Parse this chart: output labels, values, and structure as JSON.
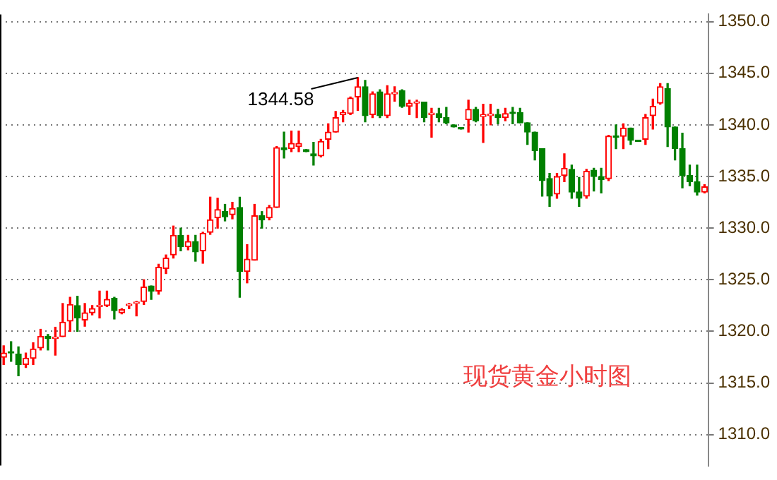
{
  "chart_data": {
    "type": "candlestick",
    "title": "现货黄金小时图",
    "categories": [
      null,
      null,
      null,
      null,
      null,
      null,
      null,
      null,
      null,
      null,
      null,
      null,
      null,
      null,
      null,
      null,
      null,
      null,
      null,
      null,
      null,
      null,
      null,
      null,
      null,
      null,
      null,
      null,
      null,
      null,
      null,
      null,
      null,
      null,
      null,
      null,
      null,
      null,
      null,
      null,
      null,
      null,
      null,
      null,
      null,
      null,
      null,
      null,
      null,
      null,
      null,
      null,
      null,
      null,
      null,
      null,
      null,
      null,
      null,
      null,
      null,
      null,
      null,
      null,
      null,
      null,
      null,
      null,
      null,
      null,
      null,
      null,
      null,
      null,
      null,
      null,
      null,
      null,
      null,
      null,
      null,
      null,
      null,
      null,
      null,
      null,
      null,
      null,
      null,
      null,
      null,
      null,
      null,
      null,
      null,
      null
    ],
    "ohlc": [
      [
        1317.5,
        1318.6,
        1316.8,
        1317.9
      ],
      [
        1318.0,
        1319.0,
        1317.1,
        1317.9
      ],
      [
        1317.8,
        1318.5,
        1315.7,
        1316.8
      ],
      [
        1316.8,
        1317.9,
        1316.5,
        1317.4
      ],
      [
        1317.4,
        1318.9,
        1316.8,
        1318.3
      ],
      [
        1318.4,
        1320.2,
        1318.2,
        1319.5
      ],
      [
        1319.5,
        1319.7,
        1318.2,
        1319.3
      ],
      [
        1319.3,
        1320.4,
        1317.7,
        1319.4
      ],
      [
        1319.5,
        1322.7,
        1319.5,
        1320.9
      ],
      [
        1321.0,
        1323.3,
        1320.0,
        1322.6
      ],
      [
        1322.5,
        1323.4,
        1320.0,
        1321.3
      ],
      [
        1321.1,
        1322.7,
        1320.5,
        1321.8
      ],
      [
        1321.8,
        1322.5,
        1321.6,
        1322.2
      ],
      [
        1322.4,
        1323.9,
        1321.3,
        1322.5
      ],
      [
        1322.5,
        1323.9,
        1322.4,
        1323.1
      ],
      [
        1323.2,
        1323.3,
        1321.2,
        1322.0
      ],
      [
        1321.8,
        1322.2,
        1321.7,
        1322.1
      ],
      [
        1322.5,
        1322.7,
        1322.2,
        1322.6
      ],
      [
        1322.7,
        1322.9,
        1321.5,
        1322.8
      ],
      [
        1322.9,
        1325.0,
        1322.6,
        1324.3
      ],
      [
        1324.4,
        1324.4,
        1323.1,
        1323.9
      ],
      [
        1323.9,
        1326.5,
        1323.6,
        1326.2
      ],
      [
        1326.1,
        1327.4,
        1325.6,
        1327.1
      ],
      [
        1327.4,
        1330.2,
        1327.1,
        1329.3
      ],
      [
        1329.3,
        1330.0,
        1327.8,
        1328.2
      ],
      [
        1328.2,
        1329.3,
        1327.9,
        1328.7
      ],
      [
        1328.7,
        1329.3,
        1326.8,
        1327.7
      ],
      [
        1327.8,
        1329.6,
        1326.6,
        1329.5
      ],
      [
        1329.6,
        1333.0,
        1329.4,
        1330.8
      ],
      [
        1331.0,
        1332.9,
        1330.0,
        1331.8
      ],
      [
        1331.6,
        1332.3,
        1330.7,
        1331.1
      ],
      [
        1331.3,
        1332.5,
        1330.9,
        1331.9
      ],
      [
        1332.0,
        1333.0,
        1323.3,
        1325.8
      ],
      [
        1325.8,
        1328.4,
        1324.7,
        1327.0
      ],
      [
        1326.9,
        1332.3,
        1326.9,
        1331.2
      ],
      [
        1331.2,
        1331.6,
        1330.0,
        1330.8
      ],
      [
        1331.0,
        1332.2,
        1330.8,
        1332.0
      ],
      [
        1332.0,
        1337.9,
        1332.0,
        1337.8
      ],
      [
        1337.8,
        1339.3,
        1336.8,
        1337.6
      ],
      [
        1337.7,
        1339.4,
        1337.4,
        1338.2
      ],
      [
        1337.9,
        1339.4,
        1337.4,
        1338.2
      ],
      [
        1337.6,
        1337.6,
        1337.4,
        1337.4
      ],
      [
        1337.2,
        1338.3,
        1336.1,
        1337.0
      ],
      [
        1337.0,
        1338.6,
        1336.9,
        1338.4
      ],
      [
        1338.6,
        1340.1,
        1337.7,
        1339.3
      ],
      [
        1339.3,
        1341.3,
        1339.3,
        1340.7
      ],
      [
        1341.0,
        1341.4,
        1340.3,
        1341.2
      ],
      [
        1341.1,
        1342.7,
        1341.0,
        1342.6
      ],
      [
        1342.7,
        1344.58,
        1341.4,
        1343.7
      ],
      [
        1343.7,
        1344.3,
        1340.3,
        1340.9
      ],
      [
        1341.0,
        1343.2,
        1340.7,
        1343.0
      ],
      [
        1343.2,
        1343.4,
        1340.7,
        1340.9
      ],
      [
        1340.9,
        1343.8,
        1340.7,
        1343.0
      ],
      [
        1343.0,
        1343.7,
        1342.3,
        1343.1
      ],
      [
        1343.3,
        1343.4,
        1341.7,
        1341.8
      ],
      [
        1341.8,
        1342.4,
        1341.0,
        1342.1
      ],
      [
        1342.1,
        1342.4,
        1340.7,
        1342.2
      ],
      [
        1342.2,
        1342.2,
        1340.3,
        1340.7
      ],
      [
        1341.0,
        1341.6,
        1338.8,
        1341.1
      ],
      [
        1341.1,
        1341.6,
        1340.3,
        1340.7
      ],
      [
        1340.7,
        1341.7,
        1340.1,
        1340.2
      ],
      [
        1340.0,
        1340.0,
        1339.8,
        1339.8
      ],
      [
        1339.7,
        1339.7,
        1339.6,
        1339.6
      ],
      [
        1340.5,
        1342.4,
        1339.3,
        1341.5
      ],
      [
        1341.5,
        1341.7,
        1340.3,
        1340.4
      ],
      [
        1340.8,
        1342.0,
        1338.3,
        1341.0
      ],
      [
        1340.9,
        1342.0,
        1340.0,
        1341.0
      ],
      [
        1341.0,
        1341.5,
        1340.1,
        1340.7
      ],
      [
        1340.7,
        1341.6,
        1340.4,
        1341.1
      ],
      [
        1341.2,
        1341.7,
        1340.1,
        1341.1
      ],
      [
        1341.2,
        1341.6,
        1340.2,
        1340.2
      ],
      [
        1340.2,
        1340.2,
        1338.1,
        1339.3
      ],
      [
        1339.3,
        1339.3,
        1336.6,
        1337.5
      ],
      [
        1337.7,
        1337.7,
        1333.1,
        1334.6
      ],
      [
        1334.8,
        1335.3,
        1332.1,
        1333.1
      ],
      [
        1333.3,
        1335.3,
        1332.9,
        1335.0
      ],
      [
        1335.1,
        1337.2,
        1334.5,
        1335.8
      ],
      [
        1335.7,
        1336.1,
        1332.9,
        1333.5
      ],
      [
        1333.5,
        1334.9,
        1332.1,
        1332.9
      ],
      [
        1333.1,
        1335.7,
        1332.9,
        1335.5
      ],
      [
        1335.6,
        1335.8,
        1333.6,
        1335.0
      ],
      [
        1335.0,
        1335.8,
        1333.4,
        1334.7
      ],
      [
        1334.8,
        1339.0,
        1334.6,
        1338.9
      ],
      [
        1338.9,
        1340.0,
        1337.7,
        1338.8
      ],
      [
        1338.9,
        1340.1,
        1337.7,
        1339.7
      ],
      [
        1339.7,
        1339.7,
        1338.1,
        1338.5
      ],
      [
        1338.5,
        1338.5,
        1338.4,
        1338.4
      ],
      [
        1338.6,
        1341.0,
        1338.1,
        1340.7
      ],
      [
        1340.9,
        1342.5,
        1339.6,
        1341.8
      ],
      [
        1342.1,
        1344.0,
        1342.0,
        1343.7
      ],
      [
        1343.5,
        1344.0,
        1337.9,
        1339.8
      ],
      [
        1339.8,
        1339.8,
        1336.6,
        1337.7
      ],
      [
        1337.7,
        1339.2,
        1333.9,
        1335.1
      ],
      [
        1335.1,
        1336.1,
        1334.1,
        1334.5
      ],
      [
        1334.5,
        1336.1,
        1333.2,
        1333.5
      ],
      [
        1333.5,
        1334.2,
        1333.4,
        1334.0
      ]
    ],
    "colors": [
      "#ff0000",
      "#008000",
      "#008000",
      "#ff0000",
      "#ff0000",
      "#ff0000",
      "#008000",
      "#ff0000",
      "#ff0000",
      "#ff0000",
      "#008000",
      "#ff0000",
      "#ff0000",
      "#ff0000",
      "#ff0000",
      "#008000",
      "#ff0000",
      "#ff0000",
      "#ff0000",
      "#ff0000",
      "#008000",
      "#ff0000",
      "#ff0000",
      "#ff0000",
      "#008000",
      "#ff0000",
      "#008000",
      "#ff0000",
      "#ff0000",
      "#ff0000",
      "#008000",
      "#ff0000",
      "#008000",
      "#ff0000",
      "#ff0000",
      "#008000",
      "#ff0000",
      "#ff0000",
      "#008000",
      "#ff0000",
      "#ff0000",
      "#008000",
      "#008000",
      "#ff0000",
      "#ff0000",
      "#ff0000",
      "#ff0000",
      "#ff0000",
      "#ff0000",
      "#008000",
      "#ff0000",
      "#008000",
      "#ff0000",
      "#ff0000",
      "#008000",
      "#ff0000",
      "#ff0000",
      "#008000",
      "#ff0000",
      "#008000",
      "#008000",
      "#008000",
      "#008000",
      "#ff0000",
      "#008000",
      "#ff0000",
      "#ff0000",
      "#008000",
      "#ff0000",
      "#008000",
      "#008000",
      "#008000",
      "#008000",
      "#008000",
      "#008000",
      "#ff0000",
      "#ff0000",
      "#008000",
      "#008000",
      "#ff0000",
      "#008000",
      "#008000",
      "#ff0000",
      "#008000",
      "#ff0000",
      "#008000",
      "#008000",
      "#ff0000",
      "#ff0000",
      "#ff0000",
      "#008000",
      "#008000",
      "#008000",
      "#008000",
      "#008000",
      "#ff0000"
    ],
    "ylim": [
      1307,
      1350.7
    ],
    "yticks": [
      {
        "value": 1310,
        "label": "1310.0"
      },
      {
        "value": 1315,
        "label": "1315.0"
      },
      {
        "value": 1320,
        "label": "1320.0"
      },
      {
        "value": 1325,
        "label": "1325.0"
      },
      {
        "value": 1330,
        "label": "1330.0"
      },
      {
        "value": 1335,
        "label": "1335.0"
      },
      {
        "value": 1340,
        "label": "1340.0"
      },
      {
        "value": 1345,
        "label": "1345.0"
      },
      {
        "value": 1350,
        "label": "1350.0"
      }
    ],
    "annotations": [
      "1344.58"
    ],
    "grid": "y",
    "legend": false,
    "tick_labels": "y"
  }
}
